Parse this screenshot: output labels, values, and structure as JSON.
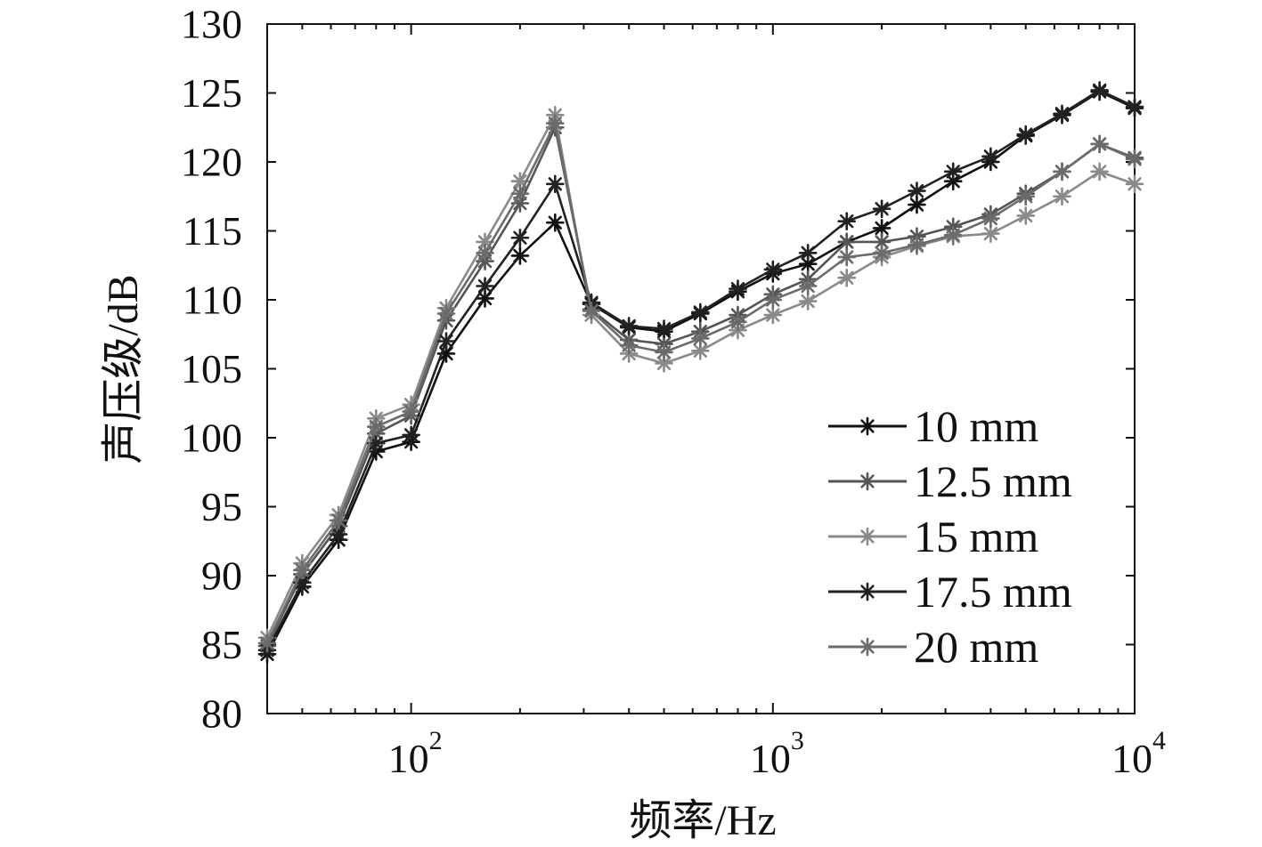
{
  "chart_data": {
    "type": "line",
    "xscale": "log",
    "xlim": [
      40,
      10000
    ],
    "ylim": [
      80,
      130
    ],
    "xlabel": "频率/Hz",
    "ylabel": "声压级/dB",
    "title": "",
    "grid": false,
    "legend_position": "bottom-right",
    "yticks": [
      "80",
      "85",
      "90",
      "95",
      "100",
      "105",
      "110",
      "115",
      "120",
      "125",
      "130"
    ],
    "xticks": [
      {
        "value": 100,
        "base": "10",
        "exp": "2"
      },
      {
        "value": 1000,
        "base": "10",
        "exp": "3"
      },
      {
        "value": 10000,
        "base": "10",
        "exp": "4"
      }
    ],
    "x": [
      40,
      50,
      63,
      80,
      100,
      125,
      160,
      200,
      250,
      315,
      400,
      500,
      630,
      800,
      1000,
      1250,
      1600,
      2000,
      2500,
      3150,
      4000,
      5000,
      6300,
      8000,
      10000
    ],
    "series": [
      {
        "name": "10 mm",
        "color": "#111111",
        "values": [
          84.3,
          89.2,
          92.6,
          99.0,
          99.7,
          106.1,
          110.1,
          113.2,
          115.6,
          109.7,
          108.0,
          107.7,
          109.0,
          110.6,
          111.9,
          112.6,
          114.2,
          115.2,
          116.9,
          118.6,
          120.0,
          121.9,
          123.4,
          125.1,
          123.9
        ]
      },
      {
        "name": "12.5 mm",
        "color": "#555555",
        "values": [
          84.9,
          90.1,
          93.6,
          100.3,
          101.6,
          108.5,
          112.8,
          117.0,
          122.5,
          109.3,
          107.1,
          106.8,
          107.7,
          108.9,
          110.4,
          111.5,
          114.2,
          114.2,
          114.6,
          115.3,
          116.2,
          117.7,
          119.3,
          121.3,
          120.3
        ]
      },
      {
        "name": "15 mm",
        "color": "#8a8a8a",
        "values": [
          85.5,
          90.9,
          94.4,
          101.4,
          102.4,
          109.4,
          114.2,
          118.6,
          123.4,
          108.9,
          106.1,
          105.4,
          106.3,
          107.8,
          108.9,
          109.9,
          111.6,
          113.1,
          113.9,
          114.6,
          114.8,
          116.1,
          117.5,
          119.3,
          118.4
        ]
      },
      {
        "name": "17.5 mm",
        "color": "#222222",
        "values": [
          84.6,
          89.5,
          93.0,
          99.6,
          100.2,
          107.0,
          111.0,
          114.5,
          118.4,
          109.8,
          108.1,
          107.9,
          109.1,
          110.8,
          112.2,
          113.4,
          115.7,
          116.6,
          117.9,
          119.3,
          120.4,
          122.0,
          123.5,
          125.2,
          124.0
        ]
      },
      {
        "name": "20 mm",
        "color": "#6b6b6b",
        "values": [
          85.1,
          90.4,
          94.0,
          100.8,
          101.9,
          109.0,
          113.4,
          117.7,
          122.8,
          109.2,
          106.7,
          106.2,
          107.2,
          108.4,
          110.0,
          111.0,
          113.1,
          113.4,
          114.0,
          114.7,
          115.9,
          117.5,
          119.3,
          121.3,
          120.2
        ]
      }
    ]
  }
}
